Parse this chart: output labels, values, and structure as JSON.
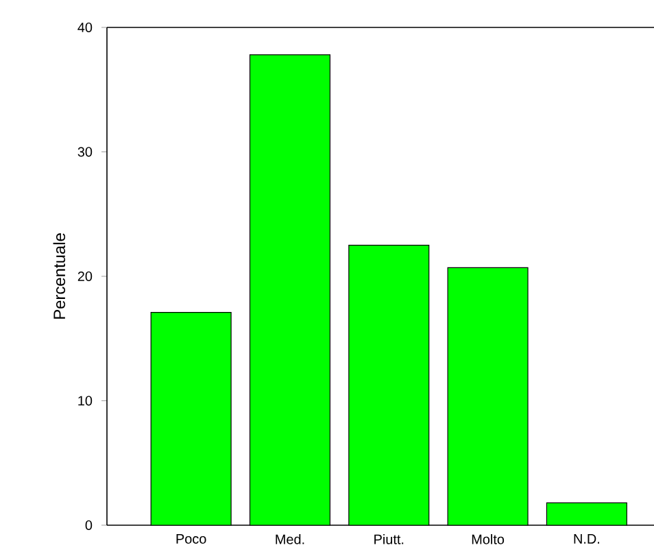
{
  "chart_data": {
    "type": "bar",
    "ylabel": "Percentuale",
    "categories": [
      "Poco",
      "Med.",
      "Piutt.",
      "Molto",
      "N.D."
    ],
    "values": [
      17.1,
      37.8,
      22.5,
      20.7,
      1.8
    ],
    "color": "#00ff00",
    "ylim": [
      0,
      40
    ],
    "yticks": [
      0,
      10,
      20,
      30,
      40
    ],
    "grid": false
  }
}
